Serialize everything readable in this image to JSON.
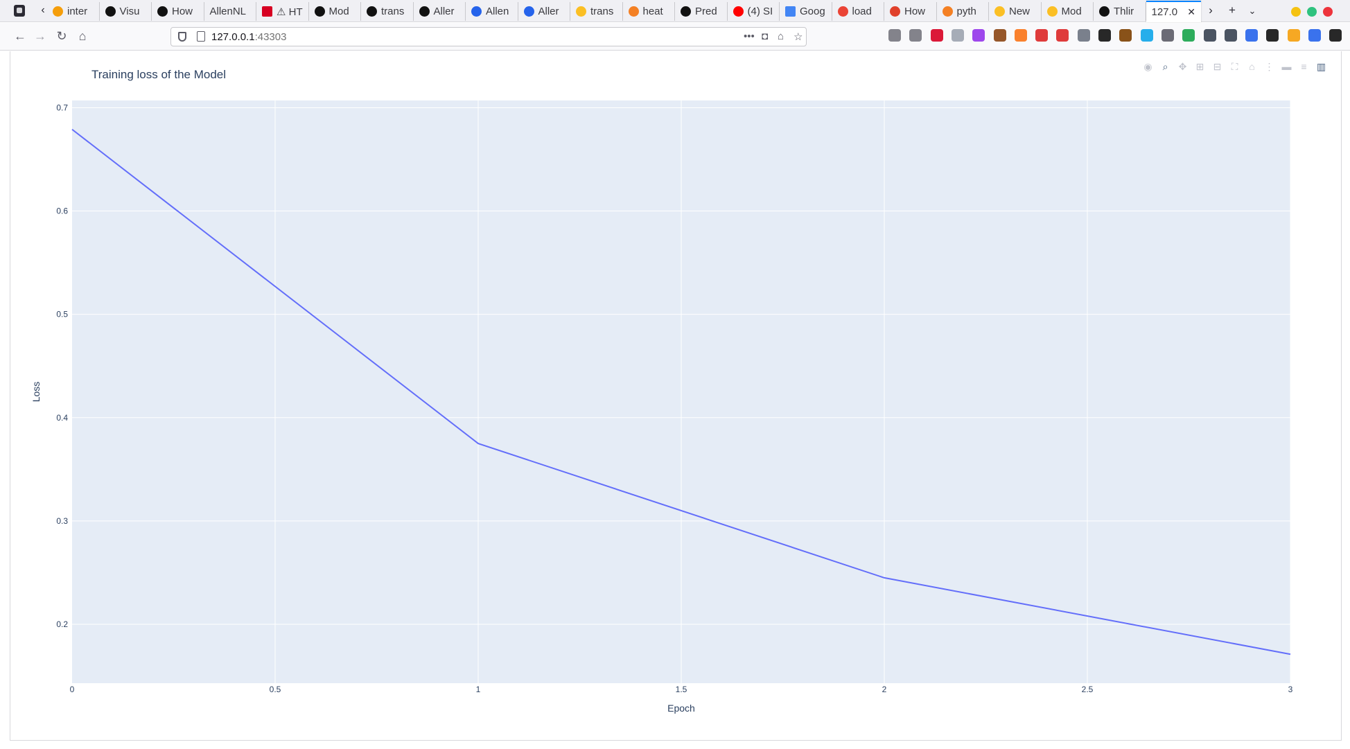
{
  "browser": {
    "tabs": [
      {
        "label": "inter",
        "favicon": "flame-favicon",
        "color": "#f59e0b"
      },
      {
        "label": "Visu",
        "favicon": "github-icon",
        "color": "#111111"
      },
      {
        "label": "How",
        "favicon": "github-icon",
        "color": "#111111"
      },
      {
        "label": "AllenNL",
        "favicon": "",
        "color": ""
      },
      {
        "label": "⚠ HT",
        "favicon": "s-red-icon",
        "color": "#d70022"
      },
      {
        "label": "Mod",
        "favicon": "github-icon",
        "color": "#111111"
      },
      {
        "label": "trans",
        "favicon": "github-icon",
        "color": "#111111"
      },
      {
        "label": "Aller",
        "favicon": "github-icon",
        "color": "#111111"
      },
      {
        "label": "Allen",
        "favicon": "allen-a-icon",
        "color": "#2563eb"
      },
      {
        "label": "Aller",
        "favicon": "allen-a-icon",
        "color": "#2563eb"
      },
      {
        "label": "trans",
        "favicon": "hugging-face-icon",
        "color": "#fbbf24"
      },
      {
        "label": "heat",
        "favicon": "stackoverflow-icon",
        "color": "#f48024"
      },
      {
        "label": "Pred",
        "favicon": "github-icon",
        "color": "#111111"
      },
      {
        "label": "(4) SI",
        "favicon": "youtube-icon",
        "color": "#ff0000"
      },
      {
        "label": "Goog",
        "favicon": "google-docs-icon",
        "color": "#4285f4"
      },
      {
        "label": "load",
        "favicon": "google-icon",
        "color": "#ea4335"
      },
      {
        "label": "How",
        "favicon": "refresh-red-icon",
        "color": "#e0402b"
      },
      {
        "label": "pyth",
        "favicon": "stackoverflow-icon",
        "color": "#f48024"
      },
      {
        "label": "New",
        "favicon": "hugging-face-icon",
        "color": "#fbbf24"
      },
      {
        "label": "Mod",
        "favicon": "hugging-face-icon",
        "color": "#fbbf24"
      },
      {
        "label": "Thlir",
        "favicon": "github-icon",
        "color": "#111111"
      },
      {
        "label": "127.0",
        "favicon": "",
        "color": "",
        "active": true
      }
    ],
    "url": {
      "host": "127.0.0.1",
      "port": ":43303"
    },
    "window_controls": {
      "minimize": "#f5c211",
      "maximize": "#2ec27e",
      "close": "#ed333b"
    }
  },
  "page": {
    "title": "Training loss of the Model",
    "modebar": [
      "camera-icon",
      "zoom-icon",
      "pan-icon",
      "zoom-in-icon",
      "zoom-out-icon",
      "autoscale-icon",
      "reset-axes-icon",
      "spike-lines-icon",
      "hover-closest-icon",
      "hover-compare-icon",
      "plotly-logo-icon"
    ]
  },
  "chart_data": {
    "type": "line",
    "title": "Training loss of the Model",
    "xlabel": "Epoch",
    "ylabel": "Loss",
    "x": [
      0,
      1,
      2,
      3
    ],
    "series": [
      {
        "values": [
          0.679,
          0.375,
          0.245,
          0.171
        ],
        "color": "#636efa"
      }
    ],
    "xlim": [
      0,
      3
    ],
    "ylim": [
      0.143,
      0.707
    ],
    "xticks": [
      "0",
      "0.5",
      "1",
      "1.5",
      "2",
      "2.5",
      "3"
    ],
    "xtick_values": [
      0,
      0.5,
      1,
      1.5,
      2,
      2.5,
      3
    ],
    "yticks": [
      "0.2",
      "0.3",
      "0.4",
      "0.5",
      "0.6",
      "0.7"
    ],
    "ytick_values": [
      0.2,
      0.3,
      0.4,
      0.5,
      0.6,
      0.7
    ],
    "plot_bgcolor": "#e5ecf6",
    "grid": true
  }
}
